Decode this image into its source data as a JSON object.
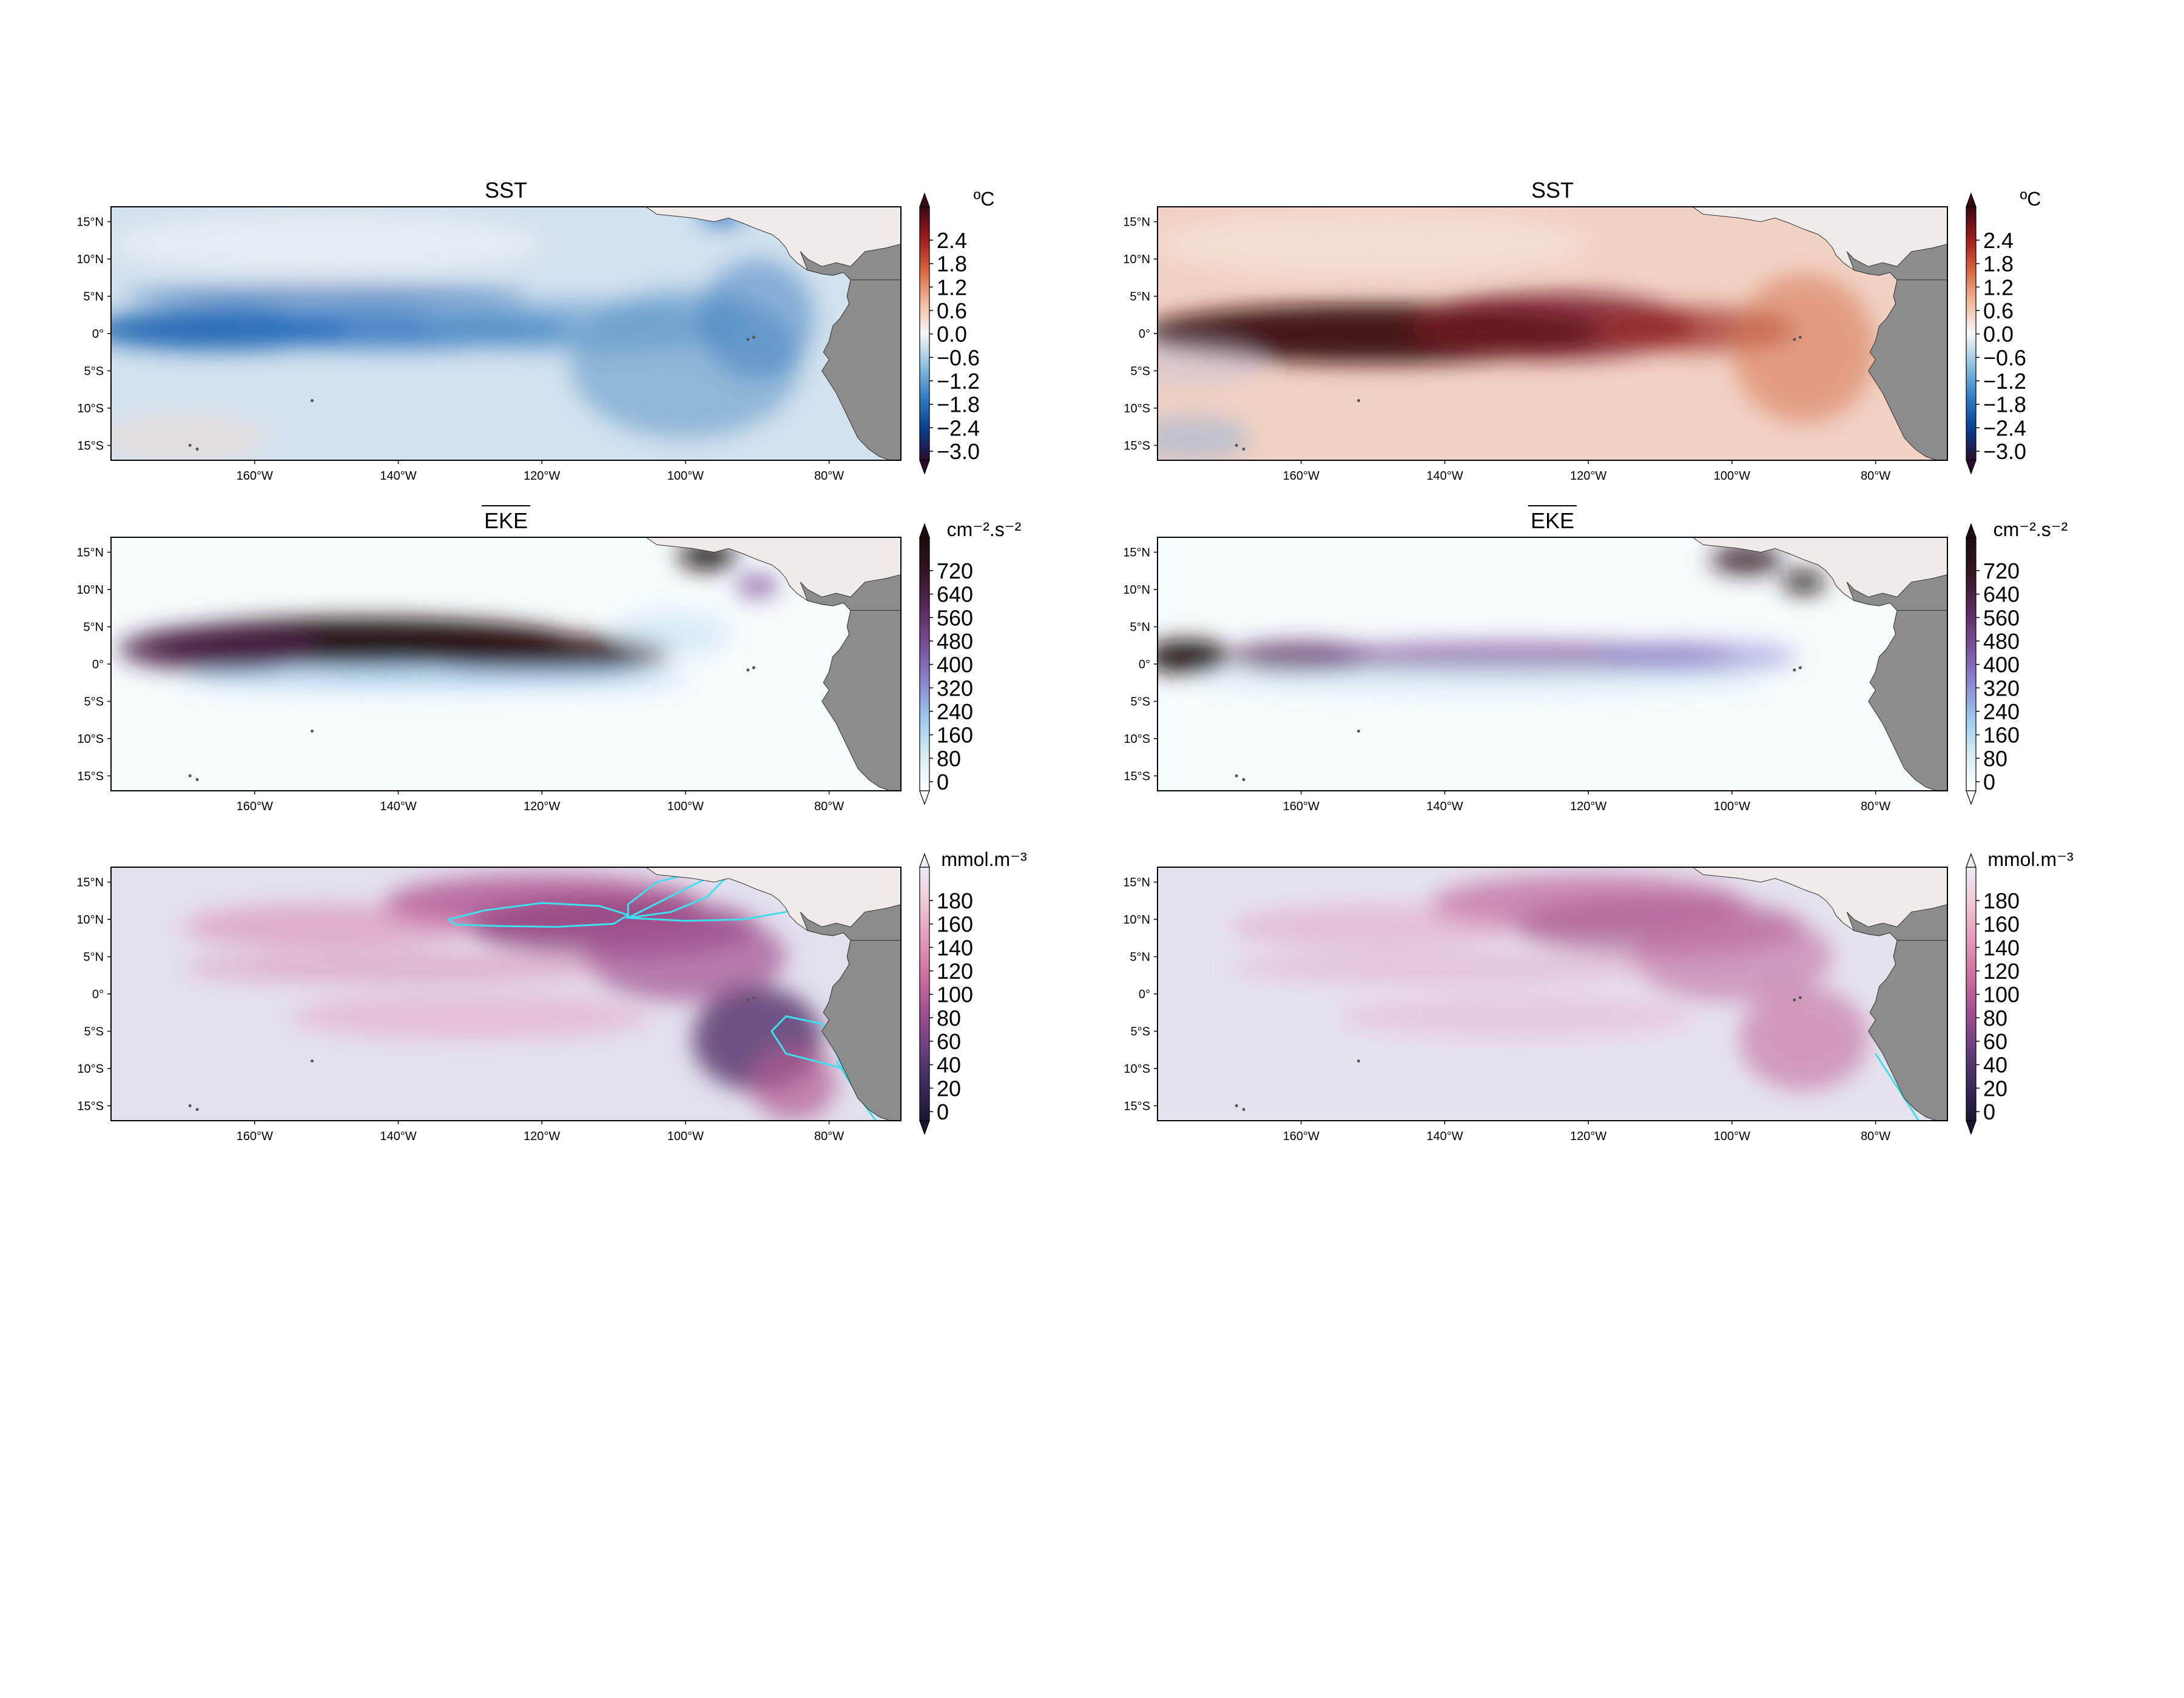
{
  "figure": {
    "rows": [
      {
        "variable": "sst",
        "title": "SST",
        "title_overline": false
      },
      {
        "variable": "eke",
        "title": "EKE",
        "title_overline": true
      },
      {
        "variable": "oxygen",
        "title": "",
        "title_overline": false
      }
    ],
    "columns": [
      "left",
      "right"
    ]
  },
  "map_axes": {
    "lon_ticks": [
      "160°W",
      "140°W",
      "120°W",
      "100°W",
      "80°W"
    ],
    "lon_tick_values": [
      -160,
      -140,
      -120,
      -100,
      -80
    ],
    "lat_ticks": [
      "15°N",
      "10°N",
      "5°N",
      "0°",
      "5°S",
      "10°S",
      "15°S"
    ],
    "lat_tick_values": [
      15,
      10,
      5,
      0,
      -5,
      -10,
      -15
    ],
    "extent": {
      "lon_min": -180,
      "lon_max": -70,
      "lat_min": -17,
      "lat_max": 17
    }
  },
  "colorbars": {
    "sst": {
      "unit": "ºC",
      "tick_labels": [
        "2.4",
        "1.8",
        "1.2",
        "0.6",
        "0.0",
        "−0.6",
        "−1.2",
        "−1.8",
        "−2.4",
        "−3.0"
      ],
      "range": [
        -3.0,
        3.0
      ],
      "extend": "both",
      "colormap": [
        "#2a0b2e",
        "#0a3f8f",
        "#2f7fc4",
        "#8fc1e0",
        "#f7f7f7",
        "#f2b89c",
        "#d9643e",
        "#9e1b1b",
        "#3a0a12"
      ]
    },
    "eke": {
      "unit": "cm⁻².s⁻²",
      "tick_labels": [
        "720",
        "640",
        "560",
        "480",
        "400",
        "320",
        "240",
        "160",
        "80",
        "0"
      ],
      "range": [
        0,
        760
      ],
      "extend": "max",
      "colormap": [
        "#ffffff",
        "#d6ecf5",
        "#9cc9ec",
        "#8a86d0",
        "#7a4f98",
        "#5a2b5e",
        "#341424",
        "#1e0c0c"
      ]
    },
    "oxygen": {
      "unit": "mmol.m⁻³",
      "tick_labels": [
        "180",
        "160",
        "140",
        "120",
        "100",
        "80",
        "60",
        "40",
        "20",
        "0"
      ],
      "range": [
        0,
        200
      ],
      "extend": "both",
      "colormap": [
        "#1b1532",
        "#3b2a5c",
        "#6a3f7e",
        "#a04f8f",
        "#cf6fa2",
        "#e39ab8",
        "#efc7d8",
        "#ecebf2"
      ]
    }
  },
  "land": {
    "mexico_fill": "#f0ebe9",
    "south_america_fill": "#8c8c8c"
  },
  "omz_contour": {
    "color": "#3ee0f0"
  }
}
